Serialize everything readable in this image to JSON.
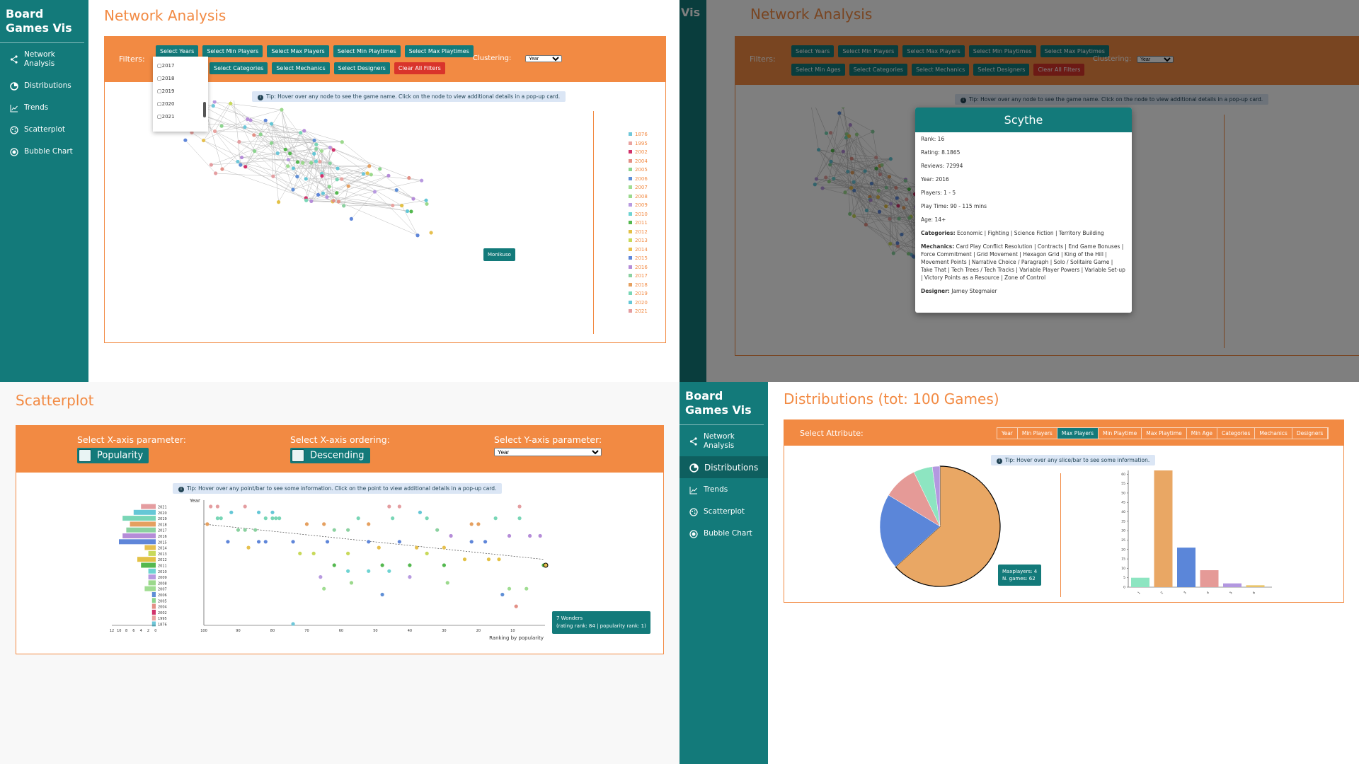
{
  "app": {
    "brand": "Board Games Vis"
  },
  "nav": [
    {
      "label": "Network Analysis",
      "icon": "share-icon"
    },
    {
      "label": "Distributions",
      "icon": "pie-chart-icon"
    },
    {
      "label": "Trends",
      "icon": "line-chart-icon"
    },
    {
      "label": "Scatterplot",
      "icon": "scatter-icon"
    },
    {
      "label": "Bubble Chart",
      "icon": "bubble-icon"
    }
  ],
  "network": {
    "title": "Network Analysis",
    "filters_label": "Filters:",
    "buttons_row1": [
      "Select Years",
      "Select Min Players",
      "Select Max Players",
      "Select Min Playtimes",
      "Select Max Playtimes"
    ],
    "buttons_row2_left": [
      "Select Categories",
      "Select Mechanics",
      "Select Designers"
    ],
    "buttons_row2_full": [
      "Select Min Ages",
      "Select Categories",
      "Select Mechanics",
      "Select Designers"
    ],
    "clear_label": "Clear All Filters",
    "clustering_label": "Clustering:",
    "clustering_value": "Year",
    "year_dropdown": [
      "2017",
      "2018",
      "2019",
      "2020",
      "2021"
    ],
    "tip": "Tip: Hover over any node to see the game name. Click on the node to view additional details in a pop-up card.",
    "hover_label": "Monikuso",
    "legend": [
      "1876",
      "1995",
      "2002",
      "2004",
      "2005",
      "2006",
      "2007",
      "2008",
      "2009",
      "2010",
      "2011",
      "2012",
      "2013",
      "2014",
      "2015",
      "2016",
      "2017",
      "2018",
      "2019",
      "2020",
      "2021"
    ],
    "legend_colors": [
      "#6fc7d9",
      "#e9a3a0",
      "#d1326b",
      "#e39086",
      "#8cd48e",
      "#5f8fd6",
      "#a0dd92",
      "#9bd98c",
      "#b89ae0",
      "#6ed3d2",
      "#54b84f",
      "#e3c146",
      "#c8d95a",
      "#e6c04f",
      "#5f86d9",
      "#b58cd8",
      "#8bd1a0",
      "#e5a060",
      "#79d6b6",
      "#65c7d6",
      "#e49da0"
    ]
  },
  "card": {
    "title": "Scythe",
    "rank_k": "Rank:",
    "rank_v": "16",
    "rating_k": "Rating:",
    "rating_v": "8.1865",
    "reviews_k": "Reviews:",
    "reviews_v": "72994",
    "year_k": "Year:",
    "year_v": "2016",
    "players_k": "Players:",
    "players_v": "1 - 5",
    "playtime_k": "Play Time:",
    "playtime_v": "90 - 115 mins",
    "age_k": "Age:",
    "age_v": "14+",
    "categories_k": "Categories:",
    "categories_v": "Economic | Fighting | Science Fiction | Territory Building",
    "mechanics_k": "Mechanics:",
    "mechanics_v": "Card Play Conflict Resolution | Contracts | End Game Bonuses | Force Commitment | Grid Movement | Hexagon Grid | King of the Hill | Movement Points | Narrative Choice / Paragraph | Solo / Solitaire Game | Take That | Tech Trees / Tech Tracks | Variable Player Powers | Variable Set-up | Victory Points as a Resource | Zone of Control",
    "designer_k": "Designer:",
    "designer_v": "Jamey Stegmaier"
  },
  "scatter": {
    "title": "Scatterplot",
    "x_param_label": "Select X-axis parameter:",
    "x_param_value": "Popularity",
    "x_order_label": "Select X-axis ordering:",
    "x_order_value": "Descending",
    "y_param_label": "Select Y-axis parameter:",
    "y_param_value": "Year",
    "tip": "Tip: Hover over any point/bar to see some information. Click on the point to view additional details in a pop-up card.",
    "y_title": "Year",
    "x_title": "Ranking by popularity",
    "hist_ticks": [
      "12",
      "10",
      "8",
      "6",
      "4",
      "2",
      "0"
    ],
    "x_ticks": [
      "100",
      "90",
      "80",
      "70",
      "60",
      "50",
      "40",
      "30",
      "20",
      "10"
    ],
    "tooltip_line1": "7 Wonders",
    "tooltip_line2": "(rating rank: 84 | popularity rank: 1)"
  },
  "chart_data": [
    {
      "type": "bar",
      "title": "",
      "ylabel": "Year",
      "categories": [
        "2021",
        "2020",
        "2019",
        "2018",
        "2017",
        "2016",
        "2015",
        "2014",
        "2013",
        "2012",
        "2011",
        "2010",
        "2009",
        "2008",
        "2007",
        "2006",
        "2005",
        "2004",
        "2002",
        "1995",
        "1876"
      ],
      "values": [
        4,
        6,
        9,
        7,
        8,
        9,
        10,
        3,
        2,
        5,
        4,
        2,
        2,
        2,
        3,
        1,
        1,
        1,
        1,
        1,
        1
      ],
      "colors": [
        "#e49da0",
        "#65c7d6",
        "#79d6b6",
        "#e5a060",
        "#8bd1a0",
        "#b58cd8",
        "#5f86d9",
        "#e6c04f",
        "#c8d95a",
        "#e3c146",
        "#54b84f",
        "#6ed3d2",
        "#b89ae0",
        "#9bd98c",
        "#a0dd92",
        "#5f8fd6",
        "#8cd48e",
        "#e39086",
        "#d1326b",
        "#e9a3a0",
        "#6fc7d9"
      ]
    },
    {
      "type": "scatter",
      "title": "",
      "xlabel": "Ranking by popularity",
      "ylabel": "Year",
      "xlim": [
        100,
        1
      ],
      "points": [
        {
          "x": 98,
          "y": 2021
        },
        {
          "x": 96,
          "y": 2021
        },
        {
          "x": 92,
          "y": 2020
        },
        {
          "x": 88,
          "y": 2021
        },
        {
          "x": 84,
          "y": 2020
        },
        {
          "x": 80,
          "y": 2020
        },
        {
          "x": 96,
          "y": 2019
        },
        {
          "x": 95,
          "y": 2019
        },
        {
          "x": 82,
          "y": 2019
        },
        {
          "x": 80,
          "y": 2019
        },
        {
          "x": 79,
          "y": 2019
        },
        {
          "x": 78,
          "y": 2019
        },
        {
          "x": 99,
          "y": 2018
        },
        {
          "x": 90,
          "y": 2017
        },
        {
          "x": 88,
          "y": 2017
        },
        {
          "x": 85,
          "y": 2017
        },
        {
          "x": 70,
          "y": 2018
        },
        {
          "x": 65,
          "y": 2018
        },
        {
          "x": 62,
          "y": 2017
        },
        {
          "x": 58,
          "y": 2017
        },
        {
          "x": 55,
          "y": 2019
        },
        {
          "x": 52,
          "y": 2018
        },
        {
          "x": 45,
          "y": 2019
        },
        {
          "x": 43,
          "y": 2021
        },
        {
          "x": 37,
          "y": 2020
        },
        {
          "x": 35,
          "y": 2019
        },
        {
          "x": 32,
          "y": 2017
        },
        {
          "x": 28,
          "y": 2016
        },
        {
          "x": 22,
          "y": 2018
        },
        {
          "x": 20,
          "y": 2018
        },
        {
          "x": 15,
          "y": 2019
        },
        {
          "x": 11,
          "y": 2016
        },
        {
          "x": 8,
          "y": 2019
        },
        {
          "x": 5,
          "y": 2016
        },
        {
          "x": 2,
          "y": 2016
        },
        {
          "x": 93,
          "y": 2015
        },
        {
          "x": 84,
          "y": 2015
        },
        {
          "x": 82,
          "y": 2015
        },
        {
          "x": 74,
          "y": 2015
        },
        {
          "x": 64,
          "y": 2015
        },
        {
          "x": 52,
          "y": 2015
        },
        {
          "x": 43,
          "y": 2015
        },
        {
          "x": 30,
          "y": 2014
        },
        {
          "x": 22,
          "y": 2015
        },
        {
          "x": 18,
          "y": 2015
        },
        {
          "x": 87,
          "y": 2014
        },
        {
          "x": 72,
          "y": 2013
        },
        {
          "x": 68,
          "y": 2013
        },
        {
          "x": 58,
          "y": 2013
        },
        {
          "x": 49,
          "y": 2014
        },
        {
          "x": 38,
          "y": 2014
        },
        {
          "x": 35,
          "y": 2013
        },
        {
          "x": 24,
          "y": 2012
        },
        {
          "x": 17,
          "y": 2012
        },
        {
          "x": 14,
          "y": 2012
        },
        {
          "x": 62,
          "y": 2011
        },
        {
          "x": 48,
          "y": 2011
        },
        {
          "x": 40,
          "y": 2011
        },
        {
          "x": 30,
          "y": 2011
        },
        {
          "x": 1,
          "y": 2011
        },
        {
          "x": 66,
          "y": 2009
        },
        {
          "x": 58,
          "y": 2010
        },
        {
          "x": 52,
          "y": 2010
        },
        {
          "x": 46,
          "y": 2010
        },
        {
          "x": 40,
          "y": 2009
        },
        {
          "x": 29,
          "y": 2008
        },
        {
          "x": 65,
          "y": 2007
        },
        {
          "x": 57,
          "y": 2008
        },
        {
          "x": 11,
          "y": 2007
        },
        {
          "x": 6,
          "y": 2007
        },
        {
          "x": 48,
          "y": 2006
        },
        {
          "x": 13,
          "y": 2006
        },
        {
          "x": 46,
          "y": 2003
        },
        {
          "x": 9,
          "y": 2004
        },
        {
          "x": 8,
          "y": 2003
        },
        {
          "x": 74,
          "y": 1876
        }
      ],
      "trendline": {
        "from": [
          100,
          2018
        ],
        "to": [
          1,
          2012
        ]
      }
    },
    {
      "type": "pie",
      "title": "",
      "categories": [
        "4",
        "2",
        "5",
        "6",
        "3"
      ],
      "values": [
        62,
        20,
        9,
        5,
        2
      ],
      "colors": [
        "#e9a764",
        "#5b86d9",
        "#e59a97",
        "#8de5c1",
        "#b398e0"
      ]
    },
    {
      "type": "bar",
      "title": "",
      "categories": [
        "1",
        "2",
        "3",
        "4",
        "5",
        "6"
      ],
      "values": [
        5,
        62,
        21,
        9,
        2,
        1
      ],
      "colors": [
        "#8de5c1",
        "#e9a764",
        "#5b86d9",
        "#e59a97",
        "#b398e0",
        "#e9c46a"
      ],
      "y_ticks": [
        "0",
        "5",
        "10",
        "15",
        "20",
        "25",
        "30",
        "35",
        "40",
        "45",
        "50",
        "55",
        "60"
      ],
      "ylim": [
        0,
        62
      ]
    }
  ],
  "dist": {
    "title": "Distributions (tot: 100 Games)",
    "select_label": "Select Attribute:",
    "tabs": [
      "Year",
      "Min Players",
      "Max Players",
      "Min Playtime",
      "Max Playtime",
      "Min Age",
      "Categories",
      "Mechanics",
      "Designers"
    ],
    "active_tab": 2,
    "tip": "Tip: Hover over any slice/bar to see some information.",
    "tooltip_line1": "Maxplayers: 4",
    "tooltip_line2": "N. games: 62"
  }
}
